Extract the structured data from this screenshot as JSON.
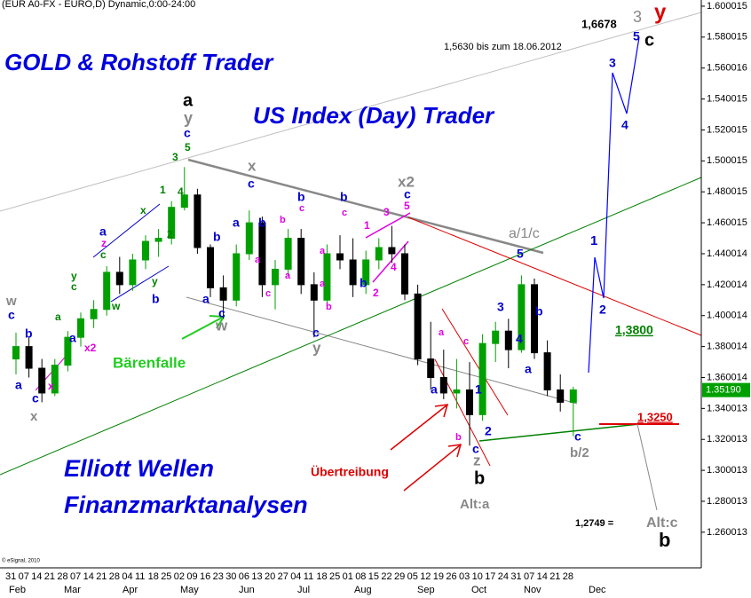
{
  "header": "(EUR A0-FX - EURO,D) Dynamic,0:00-24:00",
  "copyright": "© eSignal, 2010",
  "chart_data": {
    "type": "candlestick",
    "ylim": [
      1.237,
      1.604
    ],
    "yticks": [
      1.600015,
      1.580015,
      1.560016,
      1.540015,
      1.520015,
      1.500015,
      1.480015,
      1.460015,
      1.440014,
      1.420014,
      1.400014,
      1.380014,
      1.360014,
      1.340013,
      1.320013,
      1.300013,
      1.280013,
      1.260013
    ],
    "x_day_labels": [
      "31",
      "07",
      "14",
      "21",
      "28",
      "07",
      "14",
      "21",
      "28",
      "04",
      "11",
      "18",
      "25",
      "02",
      "09",
      "16",
      "23",
      "30",
      "06",
      "13",
      "20",
      "27",
      "04",
      "11",
      "18",
      "25",
      "01",
      "08",
      "15",
      "22",
      "29",
      "05",
      "12",
      "19",
      "26",
      "03",
      "10",
      "17",
      "24",
      "31",
      "07",
      "14",
      "21",
      "28"
    ],
    "x_month_labels": [
      "Feb",
      "Mar",
      "Apr",
      "May",
      "Jun",
      "Jul",
      "Aug",
      "Sep",
      "Oct",
      "Nov",
      "Dec"
    ],
    "open": [
      1.372,
      1.38,
      1.366,
      1.35,
      1.368,
      1.386,
      1.398,
      1.404,
      1.428,
      1.42,
      1.436,
      1.448,
      1.45,
      1.47,
      1.478,
      1.444,
      1.418,
      1.41,
      1.44,
      1.46,
      1.42,
      1.43,
      1.45,
      1.42,
      1.41,
      1.44,
      1.436,
      1.42,
      1.436,
      1.444,
      1.44,
      1.414,
      1.372,
      1.36,
      1.35,
      1.352,
      1.336,
      1.382,
      1.39,
      1.378,
      1.42,
      1.376,
      1.352,
      1.344
    ],
    "high": [
      1.389,
      1.386,
      1.372,
      1.372,
      1.39,
      1.402,
      1.41,
      1.432,
      1.438,
      1.44,
      1.452,
      1.456,
      1.474,
      1.496,
      1.482,
      1.446,
      1.426,
      1.446,
      1.468,
      1.464,
      1.436,
      1.456,
      1.456,
      1.428,
      1.446,
      1.452,
      1.45,
      1.442,
      1.45,
      1.458,
      1.446,
      1.42,
      1.396,
      1.378,
      1.372,
      1.37,
      1.388,
      1.396,
      1.398,
      1.426,
      1.424,
      1.384,
      1.362,
      1.354
    ],
    "low": [
      1.362,
      1.36,
      1.344,
      1.348,
      1.364,
      1.38,
      1.392,
      1.4,
      1.414,
      1.416,
      1.43,
      1.438,
      1.446,
      1.468,
      1.44,
      1.412,
      1.398,
      1.406,
      1.436,
      1.412,
      1.404,
      1.426,
      1.414,
      1.386,
      1.406,
      1.43,
      1.412,
      1.414,
      1.43,
      1.434,
      1.41,
      1.368,
      1.352,
      1.346,
      1.34,
      1.316,
      1.332,
      1.37,
      1.366,
      1.376,
      1.372,
      1.348,
      1.338,
      1.322
    ],
    "close": [
      1.38,
      1.366,
      1.35,
      1.368,
      1.386,
      1.398,
      1.404,
      1.428,
      1.42,
      1.436,
      1.448,
      1.45,
      1.47,
      1.478,
      1.444,
      1.418,
      1.41,
      1.44,
      1.46,
      1.42,
      1.43,
      1.45,
      1.42,
      1.41,
      1.44,
      1.436,
      1.42,
      1.436,
      1.444,
      1.44,
      1.414,
      1.372,
      1.36,
      1.35,
      1.352,
      1.336,
      1.382,
      1.39,
      1.378,
      1.42,
      1.376,
      1.352,
      1.344,
      1.352
    ],
    "up_color": "#00a000",
    "down_color": "#000000",
    "last_price": {
      "value": 1.3519,
      "label": "1.35190"
    },
    "texts": [
      {
        "text": "GOLD & Rohstoff Trader",
        "color": "#0000dd"
      },
      {
        "text": "US Index (Day) Trader",
        "color": "#0000dd"
      },
      {
        "text": "Elliott Wellen",
        "color": "#0000dd"
      },
      {
        "text": "Finanzmarktanalysen",
        "color": "#0000dd"
      },
      {
        "text": "Bärenfalle",
        "color": "#22cc22"
      },
      {
        "text": "Übertreibung",
        "color": "#dd0000"
      },
      {
        "text": "1,5630 bis zum 18.06.2012",
        "color": "#000000"
      },
      {
        "text": "1,6678",
        "color": "#000000"
      },
      {
        "text": "1,2749 =",
        "color": "#000000"
      },
      {
        "text": "Alt:a",
        "color": "#888888"
      },
      {
        "text": "Alt:c",
        "color": "#888888"
      },
      {
        "text": "b/2",
        "color": "#888888"
      },
      {
        "text": "1,3800",
        "color": "#008000"
      },
      {
        "text": "1,3250",
        "color": "#dd0000"
      },
      {
        "text": "w",
        "color": "#888888"
      },
      {
        "text": "c",
        "color": "#0000cc"
      },
      {
        "text": "b",
        "color": "#0000cc"
      },
      {
        "text": "a",
        "color": "#0000cc"
      },
      {
        "text": "c",
        "color": "#0000cc"
      },
      {
        "text": "x",
        "color": "#888888"
      },
      {
        "text": "x",
        "color": "#e000e0"
      },
      {
        "text": "a",
        "color": "#0000cc"
      },
      {
        "text": "x2",
        "color": "#e000e0"
      },
      {
        "text": "y",
        "color": "#008000"
      },
      {
        "text": "c",
        "color": "#008000"
      },
      {
        "text": "a",
        "color": "#008000"
      },
      {
        "text": "a",
        "color": "#0000cc"
      },
      {
        "text": "z",
        "color": "#e000e0"
      },
      {
        "text": "c",
        "color": "#008000"
      },
      {
        "text": "w",
        "color": "#008000"
      },
      {
        "text": "x",
        "color": "#008000"
      },
      {
        "text": "b",
        "color": "#0000cc"
      },
      {
        "text": "y",
        "color": "#008000"
      },
      {
        "text": "1",
        "color": "#008000"
      },
      {
        "text": "2",
        "color": "#008000"
      },
      {
        "text": "3",
        "color": "#008000"
      },
      {
        "text": "4",
        "color": "#008000"
      },
      {
        "text": "a",
        "color": "#000000"
      },
      {
        "text": "y",
        "color": "#888888"
      },
      {
        "text": "c",
        "color": "#0000cc"
      },
      {
        "text": "5",
        "color": "#008000"
      },
      {
        "text": "a",
        "color": "#0000cc"
      },
      {
        "text": "b",
        "color": "#0000cc"
      },
      {
        "text": "c",
        "color": "#0000cc"
      },
      {
        "text": "w",
        "color": "#888888"
      },
      {
        "text": "x",
        "color": "#888888"
      },
      {
        "text": "c",
        "color": "#0000cc"
      },
      {
        "text": "a",
        "color": "#0000cc"
      },
      {
        "text": "b",
        "color": "#0000cc"
      },
      {
        "text": "a",
        "color": "#e000e0"
      },
      {
        "text": "c",
        "color": "#e000e0"
      },
      {
        "text": "b",
        "color": "#e000e0"
      },
      {
        "text": "a",
        "color": "#e000e0"
      },
      {
        "text": "b",
        "color": "#0000cc"
      },
      {
        "text": "c",
        "color": "#e000e0"
      },
      {
        "text": "c",
        "color": "#0000cc"
      },
      {
        "text": "y",
        "color": "#888888"
      },
      {
        "text": "b",
        "color": "#e000e0"
      },
      {
        "text": "a",
        "color": "#e000e0"
      },
      {
        "text": "b",
        "color": "#0000cc"
      },
      {
        "text": "c",
        "color": "#e000e0"
      },
      {
        "text": "a",
        "color": "#e000e0"
      },
      {
        "text": "b",
        "color": "#0000cc"
      },
      {
        "text": "1",
        "color": "#e000e0"
      },
      {
        "text": "2",
        "color": "#e000e0"
      },
      {
        "text": "3",
        "color": "#e000e0"
      },
      {
        "text": "4",
        "color": "#e000e0"
      },
      {
        "text": "x2",
        "color": "#888888"
      },
      {
        "text": "c",
        "color": "#0000cc"
      },
      {
        "text": "5",
        "color": "#e000e0"
      },
      {
        "text": "a",
        "color": "#0000cc"
      },
      {
        "text": "a",
        "color": "#e000e0"
      },
      {
        "text": "c",
        "color": "#e000e0"
      },
      {
        "text": "b",
        "color": "#e000e0"
      },
      {
        "text": "1",
        "color": "#0000cc"
      },
      {
        "text": "2",
        "color": "#0000cc"
      },
      {
        "text": "c",
        "color": "#0000cc"
      },
      {
        "text": "z",
        "color": "#888888"
      },
      {
        "text": "b",
        "color": "#000000"
      },
      {
        "text": "3",
        "color": "#0000cc"
      },
      {
        "text": "4",
        "color": "#0000cc"
      },
      {
        "text": "5",
        "color": "#0000cc"
      },
      {
        "text": "a/1/c",
        "color": "#888888"
      },
      {
        "text": "a",
        "color": "#0000cc"
      },
      {
        "text": "b",
        "color": "#0000cc"
      },
      {
        "text": "c",
        "color": "#0000cc"
      },
      {
        "text": "1",
        "color": "#0000cc"
      },
      {
        "text": "2",
        "color": "#0000cc"
      },
      {
        "text": "3",
        "color": "#0000cc"
      },
      {
        "text": "4",
        "color": "#0000cc"
      },
      {
        "text": "5",
        "color": "#0000cc"
      },
      {
        "text": "3",
        "color": "#888888"
      },
      {
        "text": "c",
        "color": "#000000"
      },
      {
        "text": "y",
        "color": "#dd0000"
      },
      {
        "text": "b",
        "color": "#000000"
      }
    ]
  }
}
